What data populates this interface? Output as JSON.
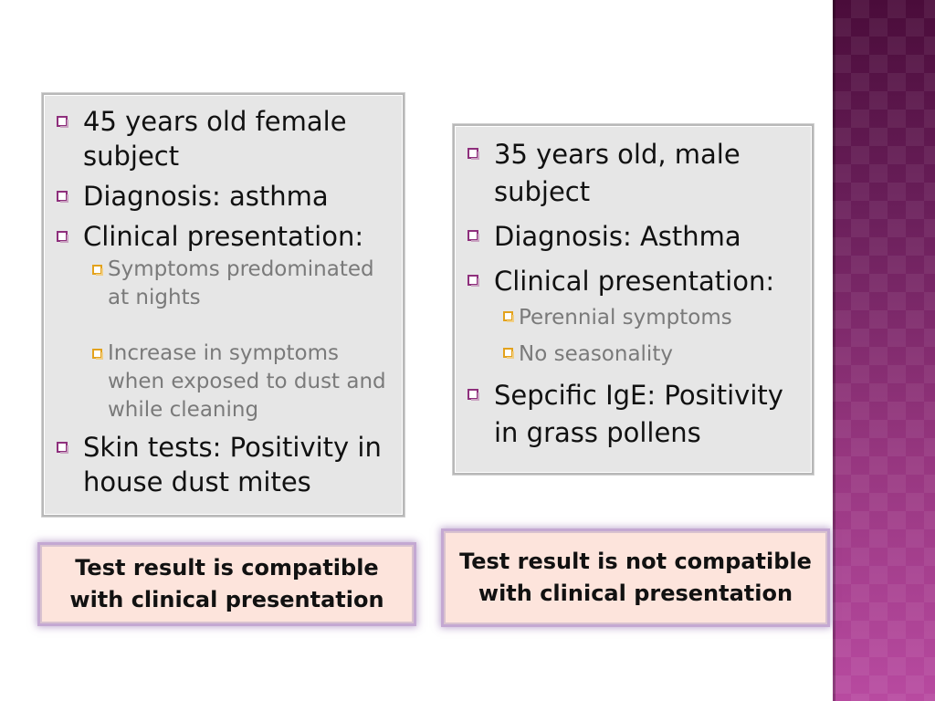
{
  "cases": [
    {
      "items": [
        {
          "text": "45  years old female subject",
          "sub": []
        },
        {
          "text": "Diagnosis: asthma",
          "sub": []
        },
        {
          "text": "Clinical presentation:",
          "sub": [
            "Symptoms predominated at nights",
            "Increase in symptoms when exposed to dust and while cleaning"
          ]
        },
        {
          "text": "Skin tests: Positivity in house dust mites",
          "sub": []
        }
      ],
      "result_lines": [
        "Test result is compatible",
        "with clinical presentation"
      ]
    },
    {
      "items": [
        {
          "text": "35 years old, male subject",
          "sub": []
        },
        {
          "text": "Diagnosis: Asthma",
          "sub": []
        },
        {
          "text": "Clinical presentation:",
          "sub": [
            "Perennial symptoms",
            "No seasonality"
          ]
        },
        {
          "text": "Sepcific IgE: Positivity in grass pollens",
          "sub": []
        }
      ],
      "result_lines": [
        "Test result is not compatible",
        "with clinical presentation"
      ]
    }
  ],
  "colors": {
    "side_band": "#96367f",
    "bullet_primary": "#8e2f7c",
    "bullet_secondary": "#e3a21c",
    "case_box_bg": "#e6e6e6",
    "result_box_bg": "#fde4dc"
  },
  "icons": {
    "level1_bullet": "hollow-square-purple-icon",
    "level2_bullet": "hollow-square-orange-icon"
  }
}
